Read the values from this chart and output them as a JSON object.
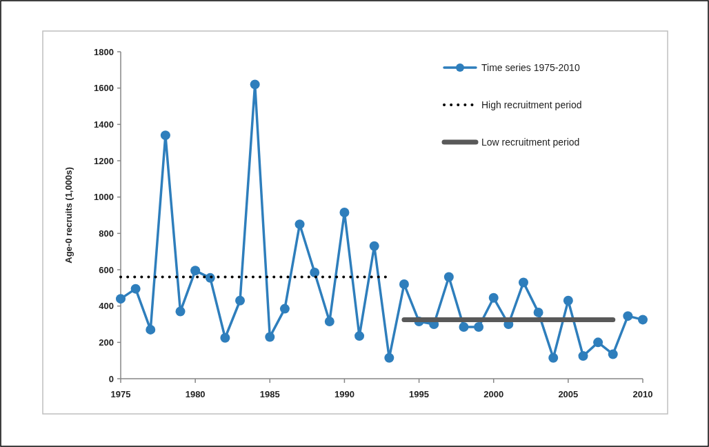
{
  "chart_data": {
    "type": "line",
    "ylabel": "Age-0 recruits (1,000s)",
    "xlim": [
      1975,
      2010
    ],
    "xticks": [
      1975,
      1980,
      1985,
      1990,
      1995,
      2000,
      2005,
      2010
    ],
    "ylim": [
      0,
      1800
    ],
    "yticks": [
      0,
      200,
      400,
      600,
      800,
      1000,
      1200,
      1400,
      1600,
      1800
    ],
    "grid": false,
    "legend": "top right",
    "series": [
      {
        "name": "Time series 1975-2010",
        "color": "#2e7ebc",
        "marker": "circle",
        "line_style": "solid",
        "x": [
          1975,
          1976,
          1977,
          1978,
          1979,
          1980,
          1981,
          1982,
          1983,
          1984,
          1985,
          1986,
          1987,
          1988,
          1989,
          1990,
          1991,
          1992,
          1993,
          1994,
          1995,
          1996,
          1997,
          1998,
          1999,
          2000,
          2001,
          2002,
          2003,
          2004,
          2005,
          2006,
          2007,
          2008,
          2009,
          2010
        ],
        "values": [
          440,
          495,
          270,
          1340,
          370,
          595,
          555,
          225,
          430,
          1620,
          230,
          385,
          850,
          585,
          315,
          915,
          235,
          730,
          115,
          520,
          315,
          300,
          560,
          285,
          285,
          445,
          300,
          530,
          365,
          115,
          430,
          125,
          200,
          135,
          345,
          325
        ]
      },
      {
        "name": "High recruitment period",
        "color": "#000000",
        "marker": "none",
        "line_style": "dotted",
        "x": [
          1975,
          1993
        ],
        "values": [
          560,
          560
        ]
      },
      {
        "name": "Low recruitment period",
        "color": "#595959",
        "marker": "none",
        "line_style": "solid",
        "x": [
          1994,
          2008
        ],
        "values": [
          325,
          325
        ]
      }
    ]
  }
}
